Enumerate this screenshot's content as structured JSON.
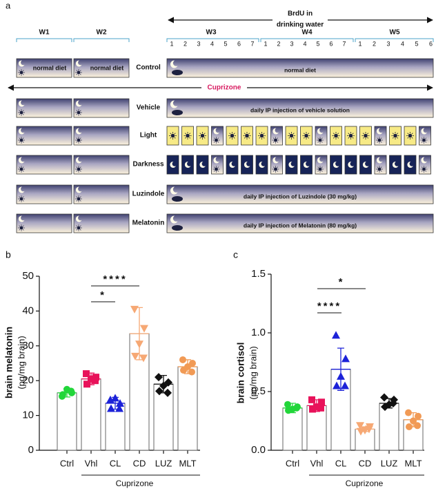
{
  "panel_a": {
    "label": "a",
    "brdu_label": [
      "BrdU in",
      "drinking water"
    ],
    "weeks": [
      "W1",
      "W2",
      "W3",
      "W4",
      "W5"
    ],
    "days": [
      [
        1,
        2,
        3,
        4,
        5,
        6,
        7
      ],
      [
        1,
        2,
        3,
        4,
        5,
        6,
        7
      ],
      [
        1,
        2,
        3,
        4,
        5,
        6
      ]
    ],
    "cuprizone": "Cuprizone",
    "rows": [
      {
        "name": "Control",
        "box_text": "normal diet",
        "bar_text": "normal diet"
      },
      {
        "name": "Vehicle",
        "bar_text": "daily IP injection of vehicle solution"
      },
      {
        "name": "Light"
      },
      {
        "name": "Darkness"
      },
      {
        "name": "Luzindole",
        "bar_text": "daily IP injection of Luzindole (30 mg/kg)"
      },
      {
        "name": "Melatonin",
        "bar_text": "daily IP injection of Melatonin (80 mg/kg)"
      }
    ]
  },
  "chart_data": [
    {
      "type": "bar",
      "panel": "b",
      "y_label": "brain melatonin",
      "y_unit": "(pg/mg brain)",
      "categories": [
        "Ctrl",
        "Vhl",
        "CL",
        "CD",
        "LUZ",
        "MLT"
      ],
      "group_label": "Cuprizone",
      "values": [
        16.5,
        20.5,
        13.5,
        33.5,
        19,
        24
      ],
      "errors": [
        1.2,
        1.7,
        1.7,
        7.5,
        2.5,
        2
      ],
      "points": [
        [
          15.5,
          16.5,
          17.5,
          16,
          17
        ],
        [
          22,
          21,
          20.5,
          19,
          20
        ],
        [
          14.5,
          13.5,
          15,
          12,
          12
        ],
        [
          40.5,
          35,
          30.5,
          27,
          26.5
        ],
        [
          21,
          19.5,
          18.5,
          17,
          16.5
        ],
        [
          26,
          25,
          24,
          23,
          22.5
        ]
      ],
      "colors": [
        "#22d63a",
        "#e8125a",
        "#1c22d8",
        "#f6a874",
        "#111111",
        "#f19a55"
      ],
      "markers": [
        "circle",
        "square",
        "triangle",
        "triangle-down",
        "diamond",
        "circle"
      ],
      "ylim": [
        0,
        50
      ],
      "yticks": [
        0,
        10,
        20,
        30,
        40,
        50
      ],
      "significance": [
        "*",
        "****"
      ]
    },
    {
      "type": "bar",
      "panel": "c",
      "y_label": "brain cortisol",
      "y_unit": "(pg/mg brain)",
      "categories": [
        "Ctrl",
        "Vhl",
        "CL",
        "CD",
        "LUZ",
        "MLT"
      ],
      "group_label": "Cuprizone",
      "values": [
        0.36,
        0.38,
        0.69,
        0.18,
        0.4,
        0.26
      ],
      "errors": [
        0.04,
        0.05,
        0.18,
        0.02,
        0.04,
        0.06
      ],
      "points": [
        [
          0.39,
          0.37,
          0.35,
          0.34,
          0.36
        ],
        [
          0.43,
          0.41,
          0.37,
          0.35,
          0.36
        ],
        [
          0.98,
          0.78,
          0.63,
          0.55,
          0.55
        ],
        [
          0.21,
          0.2,
          0.17,
          0.16,
          0.18
        ],
        [
          0.45,
          0.43,
          0.39,
          0.37,
          0.4
        ],
        [
          0.32,
          0.29,
          0.25,
          0.2,
          0.21
        ]
      ],
      "colors": [
        "#22d63a",
        "#e8125a",
        "#1c22d8",
        "#f6a874",
        "#111111",
        "#f19a55"
      ],
      "markers": [
        "circle",
        "square",
        "triangle",
        "triangle-down",
        "diamond",
        "circle"
      ],
      "ylim": [
        0,
        1.5
      ],
      "yticks": [
        {
          "value": 0,
          "label": "0.0"
        },
        0.5,
        {
          "value": 1,
          "label": "1.0"
        },
        1.5
      ],
      "significance": [
        "*",
        "****"
      ]
    }
  ]
}
